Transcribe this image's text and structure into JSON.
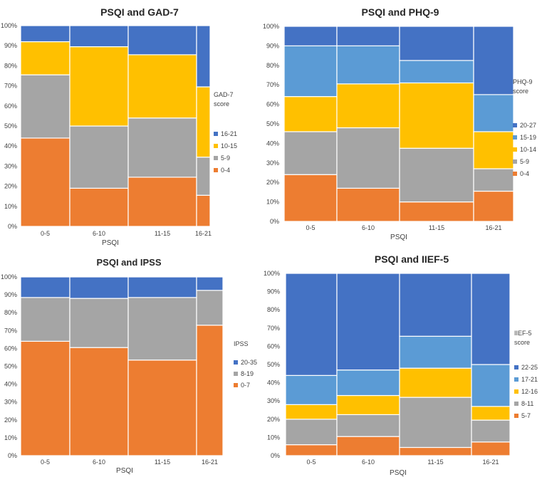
{
  "chart_data": [
    {
      "type": "bar",
      "subtype": "mosaic",
      "title": "PSQI  and GAD-7",
      "xlabel": "PSQI",
      "ylabel": "",
      "ylim": [
        0,
        100
      ],
      "yticks": [
        "0%",
        "10%",
        "20%",
        "30%",
        "40%",
        "50%",
        "60%",
        "70%",
        "80%",
        "90%",
        "100%"
      ],
      "categories": [
        "0-5",
        "6-10",
        "11-15",
        "16-21"
      ],
      "legend_title": [
        "GAD-7",
        "score"
      ],
      "series": [
        {
          "name": "0-4",
          "color": "#ED7D31",
          "values": [
            44,
            19,
            24.5,
            15.5
          ]
        },
        {
          "name": "5-9",
          "color": "#A5A5A5",
          "values": [
            31.5,
            31,
            29.5,
            19
          ]
        },
        {
          "name": "10-15",
          "color": "#FFC000",
          "values": [
            16.5,
            39.5,
            31.5,
            35
          ]
        },
        {
          "name": "16-21",
          "color": "#4472C4",
          "values": [
            8,
            10.5,
            14.5,
            30.5
          ]
        }
      ]
    },
    {
      "type": "bar",
      "subtype": "mosaic",
      "title": "PSQI and PHQ-9",
      "xlabel": "PSQI",
      "ylabel": "",
      "ylim": [
        0,
        100
      ],
      "yticks": [
        "0%",
        "10%",
        "20%",
        "30%",
        "40%",
        "50%",
        "60%",
        "70%",
        "80%",
        "90%",
        "100%"
      ],
      "categories": [
        "0-5",
        "6-10",
        "11-15",
        "16-21"
      ],
      "legend_title": [
        "PHQ-9",
        "score"
      ],
      "series": [
        {
          "name": "0-4",
          "color": "#ED7D31",
          "values": [
            24,
            17,
            10,
            15.5
          ]
        },
        {
          "name": "5-9",
          "color": "#A5A5A5",
          "values": [
            22,
            31,
            27.5,
            11.5
          ]
        },
        {
          "name": "10-14",
          "color": "#FFC000",
          "values": [
            18,
            22.5,
            33.5,
            19
          ]
        },
        {
          "name": "15-19",
          "color": "#5B9BD5",
          "values": [
            26,
            19.5,
            11.5,
            19
          ]
        },
        {
          "name": "20-27",
          "color": "#4472C4",
          "values": [
            10,
            10,
            17.5,
            35
          ]
        }
      ]
    },
    {
      "type": "bar",
      "subtype": "mosaic",
      "title": "PSQI and IPSS",
      "xlabel": "PSQI",
      "ylabel": "",
      "ylim": [
        0,
        100
      ],
      "yticks": [
        "0%",
        "10%",
        "20%",
        "30%",
        "40%",
        "50%",
        "60%",
        "70%",
        "80%",
        "90%",
        "100%"
      ],
      "categories": [
        "0-5",
        "6-10",
        "11-15",
        "16-21"
      ],
      "legend_title": [
        "IPSS"
      ],
      "series": [
        {
          "name": "0-7",
          "color": "#ED7D31",
          "values": [
            64,
            60.5,
            53.5,
            73
          ]
        },
        {
          "name": "8-19",
          "color": "#A5A5A5",
          "values": [
            24.5,
            27.5,
            35,
            19.5
          ]
        },
        {
          "name": "20-35",
          "color": "#4472C4",
          "values": [
            11.5,
            12,
            11.5,
            7.5
          ]
        }
      ]
    },
    {
      "type": "bar",
      "subtype": "mosaic",
      "title": "PSQI and IIEF-5",
      "xlabel": "PSQI",
      "ylabel": "",
      "ylim": [
        0,
        100
      ],
      "yticks": [
        "0%",
        "10%",
        "20%",
        "30%",
        "40%",
        "50%",
        "60%",
        "70%",
        "80%",
        "90%",
        "100%"
      ],
      "categories": [
        "0-5",
        "6-10",
        "11-15",
        "16-21"
      ],
      "legend_title": [
        "IIEF-5",
        "score"
      ],
      "series": [
        {
          "name": "5-7",
          "color": "#ED7D31",
          "values": [
            6,
            10.5,
            4.5,
            7.5
          ]
        },
        {
          "name": "8-11",
          "color": "#A5A5A5",
          "values": [
            14,
            12,
            27.5,
            12
          ]
        },
        {
          "name": "12-16",
          "color": "#FFC000",
          "values": [
            8,
            10.5,
            16,
            7.5
          ]
        },
        {
          "name": "17-21",
          "color": "#5B9BD5",
          "values": [
            16,
            14,
            17.5,
            23
          ]
        },
        {
          "name": "22-25",
          "color": "#4472C4",
          "values": [
            56,
            53,
            34.5,
            50
          ]
        }
      ]
    }
  ]
}
